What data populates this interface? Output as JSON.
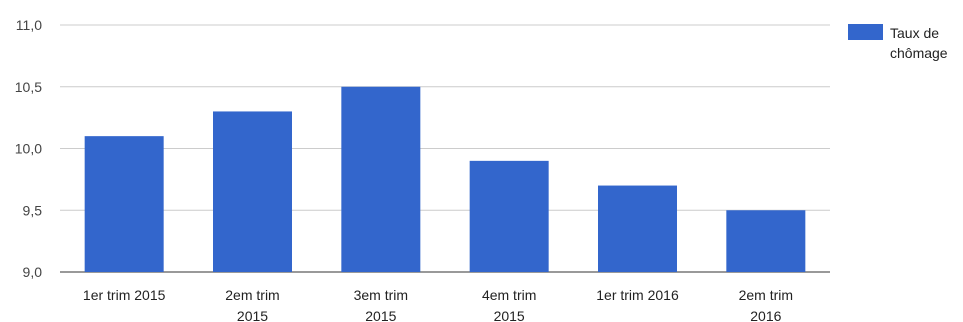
{
  "chart_data": {
    "type": "bar",
    "categories": [
      [
        "1er trim 2015"
      ],
      [
        "2em trim",
        "2015"
      ],
      [
        "3em trim",
        "2015"
      ],
      [
        "4em trim",
        "2015"
      ],
      [
        "1er trim 2016"
      ],
      [
        "2em trim",
        "2016"
      ]
    ],
    "series": [
      {
        "name": [
          "Taux de",
          "chômage"
        ],
        "values": [
          10.1,
          10.3,
          10.5,
          9.9,
          9.7,
          9.5
        ],
        "color": "#3366cc"
      }
    ],
    "ylim": [
      9.0,
      11.0
    ],
    "yticks": [
      "9,0",
      "9,5",
      "10,0",
      "10,5",
      "11,0"
    ],
    "ytick_values": [
      9.0,
      9.5,
      10.0,
      10.5,
      11.0
    ],
    "grid": true,
    "grid_color": "#cccccc",
    "legend_position": "right"
  }
}
